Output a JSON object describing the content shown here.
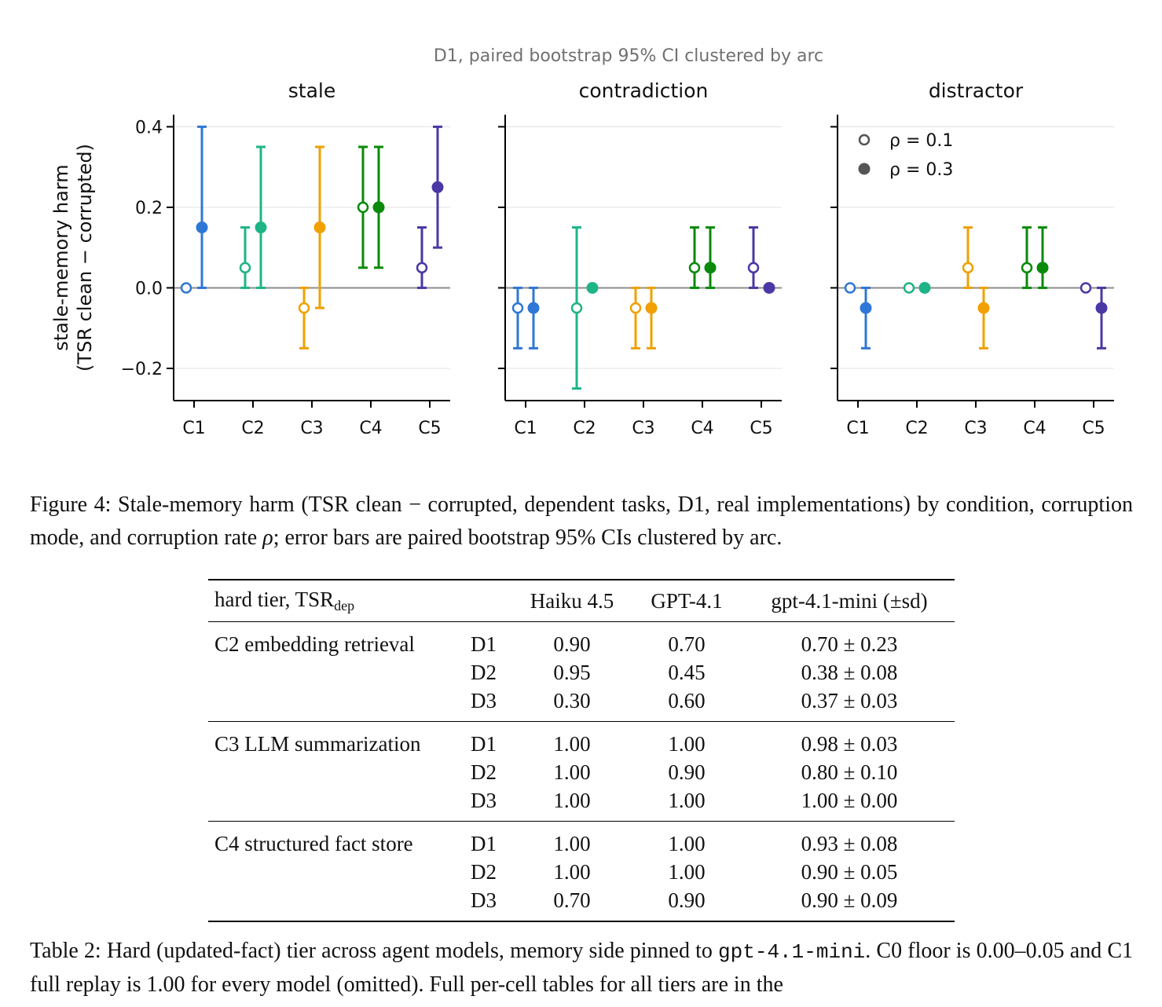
{
  "figure": {
    "suptitle": "D1, paired bootstrap 95% CI clustered by arc",
    "ylabel_line1": "stale-memory harm",
    "ylabel_line2": "(TSR clean − corrupted)",
    "legend": [
      {
        "label": "ρ = 0.1",
        "marker": "open"
      },
      {
        "label": "ρ = 0.3",
        "marker": "filled"
      }
    ],
    "colors": {
      "C1": "#2f77d6",
      "C2": "#1eb487",
      "C3": "#f0a000",
      "C4": "#0a8a0a",
      "C5": "#4b37a6"
    }
  },
  "chart_data": {
    "type": "scatter",
    "categories": [
      "C1",
      "C2",
      "C3",
      "C4",
      "C5"
    ],
    "ylim": [
      -0.28,
      0.43
    ],
    "yticks": [
      -0.2,
      0.0,
      0.2,
      0.4
    ],
    "ytick_labels": [
      "−0.2",
      "0.0",
      "0.2",
      "0.4"
    ],
    "grid": true,
    "legend_position": "top-left of third panel",
    "panels": [
      {
        "title": "stale",
        "series": [
          {
            "name": "ρ = 0.1",
            "marker": "open",
            "values": [
              0.0,
              0.05,
              -0.05,
              0.2,
              0.05
            ],
            "lo": [
              0.0,
              0.0,
              -0.15,
              0.05,
              0.0
            ],
            "hi": [
              0.0,
              0.15,
              0.0,
              0.35,
              0.15
            ]
          },
          {
            "name": "ρ = 0.3",
            "marker": "filled",
            "values": [
              0.15,
              0.15,
              0.15,
              0.2,
              0.25
            ],
            "lo": [
              0.0,
              0.0,
              -0.05,
              0.05,
              0.1
            ],
            "hi": [
              0.4,
              0.35,
              0.35,
              0.35,
              0.4
            ]
          }
        ]
      },
      {
        "title": "contradiction",
        "series": [
          {
            "name": "ρ = 0.1",
            "marker": "open",
            "values": [
              -0.05,
              -0.05,
              -0.05,
              0.05,
              0.05
            ],
            "lo": [
              -0.15,
              -0.25,
              -0.15,
              0.0,
              0.0
            ],
            "hi": [
              0.0,
              0.15,
              0.0,
              0.15,
              0.15
            ]
          },
          {
            "name": "ρ = 0.3",
            "marker": "filled",
            "values": [
              -0.05,
              0.0,
              -0.05,
              0.05,
              0.0
            ],
            "lo": [
              -0.15,
              0.0,
              -0.15,
              0.0,
              0.0
            ],
            "hi": [
              0.0,
              0.0,
              0.0,
              0.15,
              0.0
            ]
          }
        ]
      },
      {
        "title": "distractor",
        "series": [
          {
            "name": "ρ = 0.1",
            "marker": "open",
            "values": [
              0.0,
              0.0,
              0.05,
              0.05,
              0.0
            ],
            "lo": [
              0.0,
              0.0,
              0.0,
              0.0,
              0.0
            ],
            "hi": [
              0.0,
              0.0,
              0.15,
              0.15,
              0.0
            ]
          },
          {
            "name": "ρ = 0.3",
            "marker": "filled",
            "values": [
              -0.05,
              0.0,
              -0.05,
              0.05,
              -0.05
            ],
            "lo": [
              -0.15,
              0.0,
              -0.15,
              0.0,
              -0.15
            ],
            "hi": [
              0.0,
              0.0,
              0.0,
              0.15,
              0.0
            ]
          }
        ]
      }
    ]
  },
  "figure_caption": {
    "label": "Figure 4:",
    "text_before_rho": "Stale-memory harm (TSR clean − corrupted, dependent tasks, D1, real implementations) by condition, corruption mode, and corruption rate ",
    "rho": "ρ",
    "text_after_rho": "; error bars are paired bootstrap 95% CIs clustered by arc."
  },
  "table": {
    "header": {
      "title": "hard tier, TSR",
      "title_sub": "dep",
      "cols": [
        "Haiku 4.5",
        "GPT-4.1",
        "gpt-4.1-mini (±sd)"
      ]
    },
    "groups": [
      {
        "name": "C2 embedding retrieval",
        "rows": [
          {
            "d": "D1",
            "haiku": "0.90",
            "gpt41": "0.70",
            "mini": "0.70 ± 0.23"
          },
          {
            "d": "D2",
            "haiku": "0.95",
            "gpt41": "0.45",
            "mini": "0.38 ± 0.08"
          },
          {
            "d": "D3",
            "haiku": "0.30",
            "gpt41": "0.60",
            "mini": "0.37 ± 0.03"
          }
        ]
      },
      {
        "name": "C3 LLM summarization",
        "rows": [
          {
            "d": "D1",
            "haiku": "1.00",
            "gpt41": "1.00",
            "mini": "0.98 ± 0.03"
          },
          {
            "d": "D2",
            "haiku": "1.00",
            "gpt41": "0.90",
            "mini": "0.80 ± 0.10"
          },
          {
            "d": "D3",
            "haiku": "1.00",
            "gpt41": "1.00",
            "mini": "1.00 ± 0.00"
          }
        ]
      },
      {
        "name": "C4 structured fact store",
        "rows": [
          {
            "d": "D1",
            "haiku": "1.00",
            "gpt41": "1.00",
            "mini": "0.93 ± 0.08"
          },
          {
            "d": "D2",
            "haiku": "1.00",
            "gpt41": "1.00",
            "mini": "0.90 ± 0.05"
          },
          {
            "d": "D3",
            "haiku": "0.70",
            "gpt41": "0.90",
            "mini": "0.90 ± 0.09"
          }
        ]
      }
    ]
  },
  "table_caption": {
    "label": "Table 2:",
    "text_before_code": "Hard (updated-fact) tier across agent models, memory side pinned to ",
    "code": "gpt-4.1-mini",
    "text_after_code": ". C0 floor is 0.00–0.05 and C1 full replay is 1.00 for every model (omitted). Full per-cell tables for all tiers are in the"
  }
}
